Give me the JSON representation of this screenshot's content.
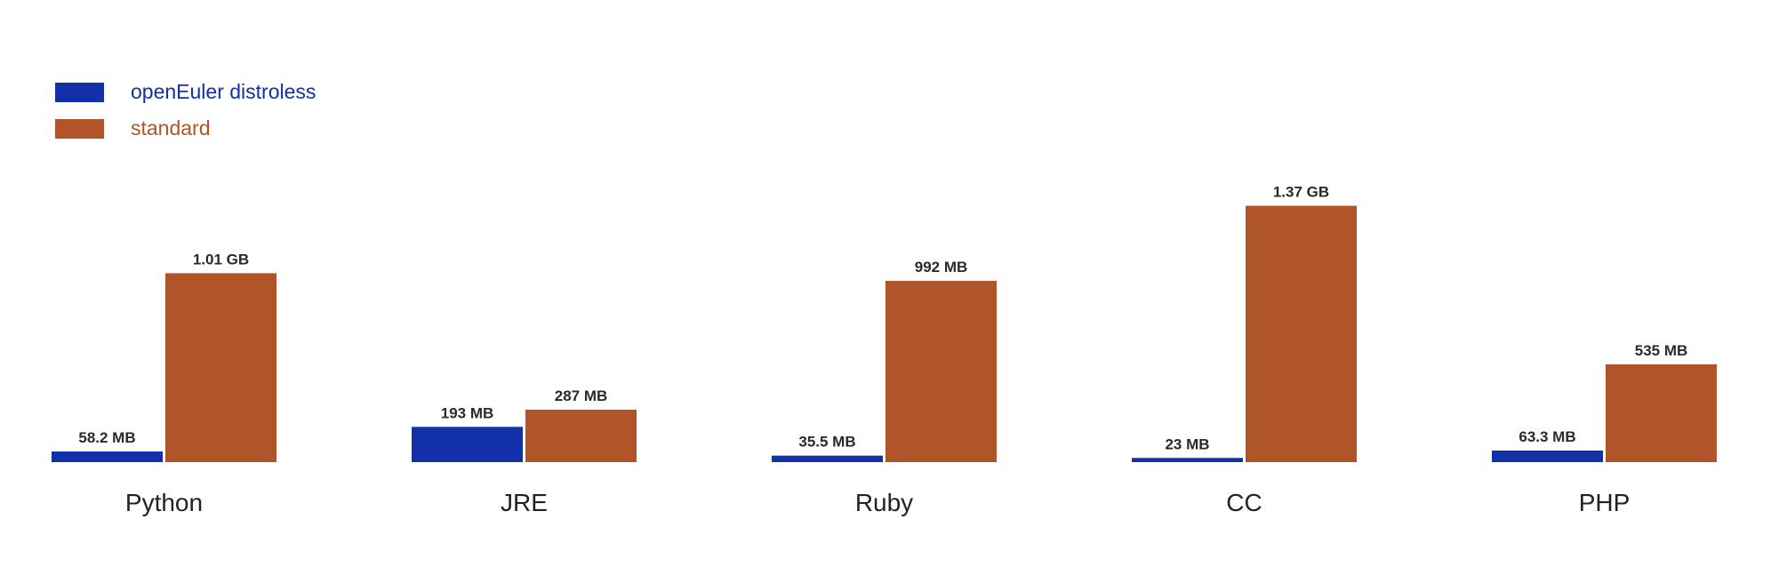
{
  "colors": {
    "distroless": "#1230a8",
    "standard": "#b0552a",
    "text": "#2a2a2a"
  },
  "chart_data": {
    "type": "bar",
    "title": "",
    "xlabel": "",
    "ylabel": "",
    "unit": "MB",
    "ylim": [
      0,
      1450
    ],
    "grid": false,
    "legend_position": "top-left",
    "categories": [
      "Python",
      "JRE",
      "Ruby",
      "CC",
      "PHP"
    ],
    "series": [
      {
        "name": "openEuler distroless",
        "values": [
          58.2,
          193,
          35.5,
          23,
          63.3
        ],
        "labels": [
          "58.2 MB",
          "193 MB",
          "35.5 MB",
          "23 MB",
          "63.3 MB"
        ]
      },
      {
        "name": "standard",
        "values": [
          1034,
          287,
          992,
          1403,
          535
        ],
        "labels": [
          "1.01 GB",
          "287 MB",
          "992 MB",
          "1.37 GB",
          "535 MB"
        ]
      }
    ]
  }
}
